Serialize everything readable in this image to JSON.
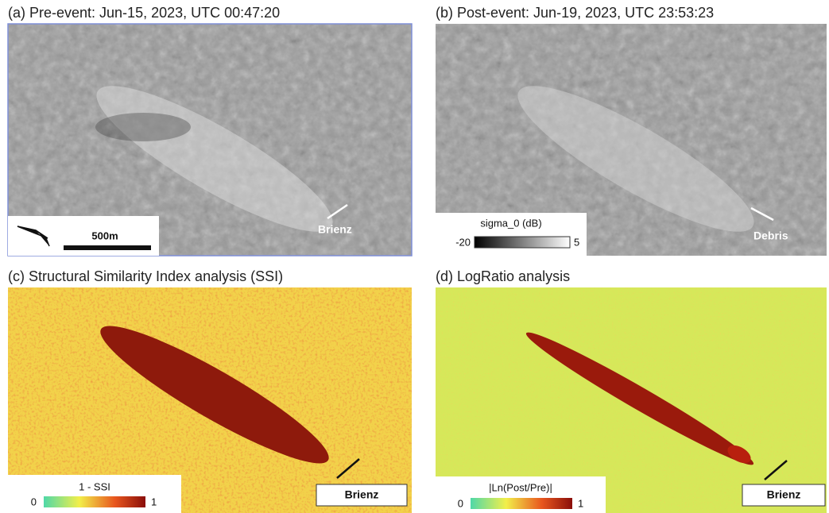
{
  "panels": [
    {
      "title": "(a) Pre-event: Jun-15, 2023, UTC 00:47:20",
      "scale_label": "500m",
      "annotation": "Brienz"
    },
    {
      "title": "(b) Post-event: Jun-19, 2023, UTC 23:53:23",
      "legend_title": "sigma_0 (dB)",
      "legend_min": "-20",
      "legend_max": "5",
      "annotation": "Debris"
    },
    {
      "title": "(c) Structural Similarity Index analysis (SSI)",
      "legend_title": "1 - SSI",
      "legend_min": "0",
      "legend_max": "1",
      "annotation": "Brienz"
    },
    {
      "title": "(d) LogRatio analysis",
      "legend_title": "|Ln(Post/Pre)|",
      "legend_min": "0",
      "legend_max": "1",
      "annotation": "Brienz"
    }
  ]
}
